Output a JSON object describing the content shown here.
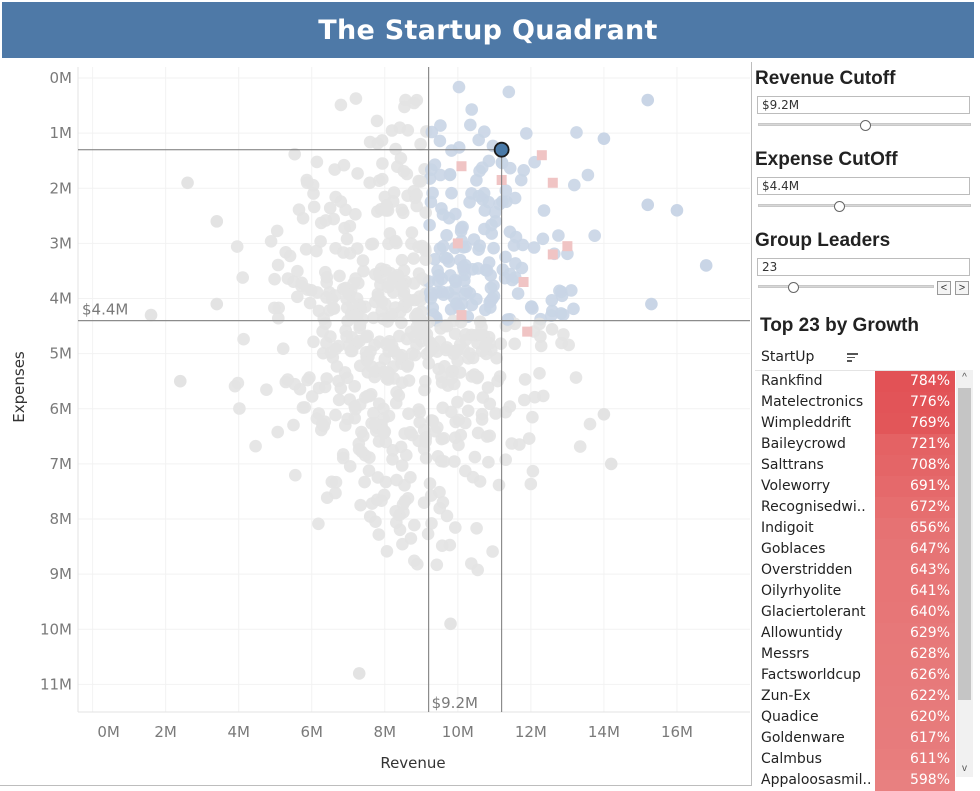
{
  "header": {
    "title": "The Startup Quadrant"
  },
  "controls": {
    "revenue": {
      "title": "Revenue Cutoff",
      "value": "$9.2M",
      "fraction": 0.5
    },
    "expense": {
      "title": "Expense CutOff",
      "value": "$4.4M",
      "fraction": 0.38
    },
    "leaders": {
      "title": "Group Leaders",
      "value": "23",
      "fraction": 0.2,
      "prev": "<",
      "next": ">"
    }
  },
  "top_list": {
    "title": "Top 23 by Growth",
    "column": "StartUp",
    "scroll_up": "^",
    "scroll_down": "v",
    "rows": [
      {
        "name": "Rankfind",
        "growth": "784%"
      },
      {
        "name": "Matelectronics",
        "growth": "776%"
      },
      {
        "name": "Wimpleddrift",
        "growth": "769%"
      },
      {
        "name": "Baileycrowd",
        "growth": "721%"
      },
      {
        "name": "Salttrans",
        "growth": "708%"
      },
      {
        "name": "Voleworry",
        "growth": "691%"
      },
      {
        "name": "Recognisedwi..",
        "growth": "672%"
      },
      {
        "name": "Indigoit",
        "growth": "656%"
      },
      {
        "name": "Goblaces",
        "growth": "647%"
      },
      {
        "name": "Overstridden",
        "growth": "643%"
      },
      {
        "name": "Oilyrhyolite",
        "growth": "641%"
      },
      {
        "name": "Glaciertolerant",
        "growth": "640%"
      },
      {
        "name": "Allowuntidy",
        "growth": "629%"
      },
      {
        "name": "Messrs",
        "growth": "628%"
      },
      {
        "name": "Factsworldcup",
        "growth": "626%"
      },
      {
        "name": "Zun-Ex",
        "growth": "622%"
      },
      {
        "name": "Quadice",
        "growth": "620%"
      },
      {
        "name": "Goldenware",
        "growth": "617%"
      },
      {
        "name": "Calmbus",
        "growth": "611%"
      },
      {
        "name": "Appaloosasmil..",
        "growth": "598%"
      }
    ]
  },
  "chart_data": {
    "type": "scatter",
    "xlabel": "Revenue",
    "ylabel": "Expenses",
    "xlim": [
      -0.4,
      18
    ],
    "ylim": [
      -0.2,
      11.5
    ],
    "y_inverted": true,
    "x_ticks": [
      "0M",
      "2M",
      "4M",
      "6M",
      "8M",
      "10M",
      "12M",
      "14M",
      "16M"
    ],
    "y_ticks": [
      "0M",
      "1M",
      "2M",
      "3M",
      "4M",
      "5M",
      "6M",
      "7M",
      "8M",
      "9M",
      "10M",
      "11M"
    ],
    "revenue_cutoff": 9.2,
    "revenue_cutoff_label": "$9.2M",
    "expense_cutoff": 4.4,
    "expense_cutoff_label": "$4.4M",
    "highlight": {
      "x": 11.2,
      "y": 1.3
    },
    "colors": {
      "background_point": "#e3e3e3",
      "quadrant_point": "#c9d5e6",
      "leader_mark": "#f0c4c4",
      "highlight": "#4a7aa8"
    },
    "leader_marks": [
      {
        "x": 10.1,
        "y": 1.6
      },
      {
        "x": 11.2,
        "y": 1.85
      },
      {
        "x": 12.3,
        "y": 1.4
      },
      {
        "x": 12.6,
        "y": 1.9
      },
      {
        "x": 10.0,
        "y": 3.0
      },
      {
        "x": 12.6,
        "y": 3.2
      },
      {
        "x": 13.0,
        "y": 3.05
      },
      {
        "x": 11.8,
        "y": 3.7
      },
      {
        "x": 10.1,
        "y": 4.3
      },
      {
        "x": 11.9,
        "y": 4.6
      }
    ],
    "points_note": "background cloud of several hundred startups, most concentrated between 5M-12M revenue and 0M-9M expenses"
  }
}
